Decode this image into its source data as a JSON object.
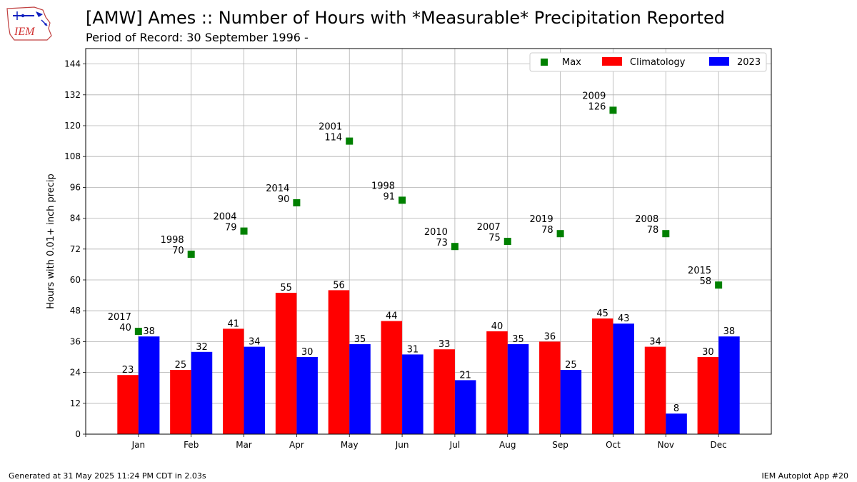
{
  "header": {
    "title": "[AMW] Ames :: Number of Hours with *Measurable* Precipitation Reported",
    "subtitle": "Period of Record: 30 September 1996 -",
    "logo_text": "IEM"
  },
  "footer": {
    "generated": "Generated at 31 May 2025 11:24 PM CDT in 2.03s",
    "app": "IEM Autoplot App #20"
  },
  "colors": {
    "climatology": "#ff0000",
    "year": "#0000ff",
    "max": "#008000",
    "grid": "#b0b0b0"
  },
  "chart_data": {
    "type": "bar",
    "title": "[AMW] Ames :: Number of Hours with *Measurable* Precipitation Reported",
    "subtitle": "Period of Record: 30 September 1996 -",
    "xlabel": "",
    "ylabel": "Hours with 0.01+ inch precip",
    "ylim": [
      0,
      150
    ],
    "yticks": [
      0,
      12,
      24,
      36,
      48,
      60,
      72,
      84,
      96,
      108,
      120,
      132,
      144
    ],
    "grid": true,
    "legend_position": "top-right",
    "categories": [
      "Jan",
      "Feb",
      "Mar",
      "Apr",
      "May",
      "Jun",
      "Jul",
      "Aug",
      "Sep",
      "Oct",
      "Nov",
      "Dec"
    ],
    "series": [
      {
        "name": "Climatology",
        "values": [
          23,
          25,
          41,
          55,
          56,
          44,
          33,
          40,
          36,
          45,
          34,
          30
        ]
      },
      {
        "name": "2023",
        "values": [
          38,
          32,
          34,
          30,
          35,
          31,
          21,
          35,
          25,
          43,
          8,
          38
        ]
      }
    ],
    "max": {
      "name": "Max",
      "values": [
        40,
        70,
        79,
        90,
        114,
        91,
        73,
        75,
        78,
        126,
        78,
        58
      ],
      "years": [
        "2017",
        "1998",
        "2004",
        "2014",
        "2001",
        "1998",
        "2010",
        "2007",
        "2019",
        "2009",
        "2008",
        "2015"
      ]
    }
  }
}
